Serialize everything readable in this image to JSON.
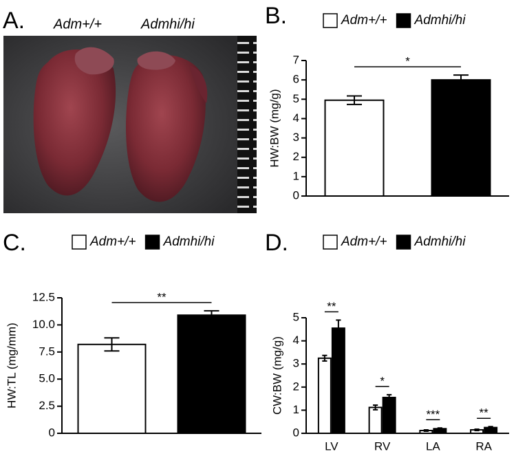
{
  "photo_panel": {
    "panel_label": "A.",
    "captions": [
      "Adm+/+",
      "Admhi/hi"
    ]
  },
  "chart_data": [
    {
      "type": "bar",
      "panel_label": "B.",
      "y_label": "HW:BW (mg/g)",
      "series": [
        {
          "name": "Adm+/+",
          "color": "#ffffff",
          "values": [
            4.95
          ],
          "errors": [
            0.22
          ]
        },
        {
          "name": "Admhi/hi",
          "color": "#000000",
          "values": [
            6.0
          ],
          "errors": [
            0.25
          ]
        }
      ],
      "annotations": [
        "*"
      ],
      "ylim": [
        0,
        7
      ],
      "yticks": [
        0,
        1,
        2,
        3,
        4,
        5,
        6,
        7
      ]
    },
    {
      "type": "bar",
      "panel_label": "C.",
      "y_label": "HW:TL (mg/mm)",
      "series": [
        {
          "name": "Adm+/+",
          "color": "#ffffff",
          "values": [
            8.2
          ],
          "errors": [
            0.6
          ]
        },
        {
          "name": "Admhi/hi",
          "color": "#000000",
          "values": [
            10.9
          ],
          "errors": [
            0.4
          ]
        }
      ],
      "annotations": [
        "**"
      ],
      "ylim": [
        0,
        12.5
      ],
      "yticks": [
        0,
        2.5,
        {
          "value": 5,
          "label": "5.0"
        },
        7.5,
        {
          "value": 10,
          "label": "10.0"
        },
        12.5
      ]
    },
    {
      "type": "bar",
      "panel_label": "D.",
      "y_label": "CW:BW (mg/g)",
      "categories": [
        "LV",
        "RV",
        "LA",
        "RA"
      ],
      "series": [
        {
          "name": "Adm+/+",
          "color": "#ffffff",
          "values": [
            3.25,
            1.12,
            0.12,
            0.15
          ],
          "errors": [
            0.12,
            0.1,
            0.03,
            0.03
          ]
        },
        {
          "name": "Admhi/hi",
          "color": "#000000",
          "values": [
            4.55,
            1.55,
            0.2,
            0.25
          ],
          "errors": [
            0.35,
            0.12,
            0.03,
            0.04
          ]
        }
      ],
      "annotations": [
        "**",
        "*",
        "***",
        "**"
      ],
      "ylim": [
        0,
        5
      ],
      "yticks": [
        0,
        1,
        2,
        3,
        4,
        5
      ]
    }
  ]
}
